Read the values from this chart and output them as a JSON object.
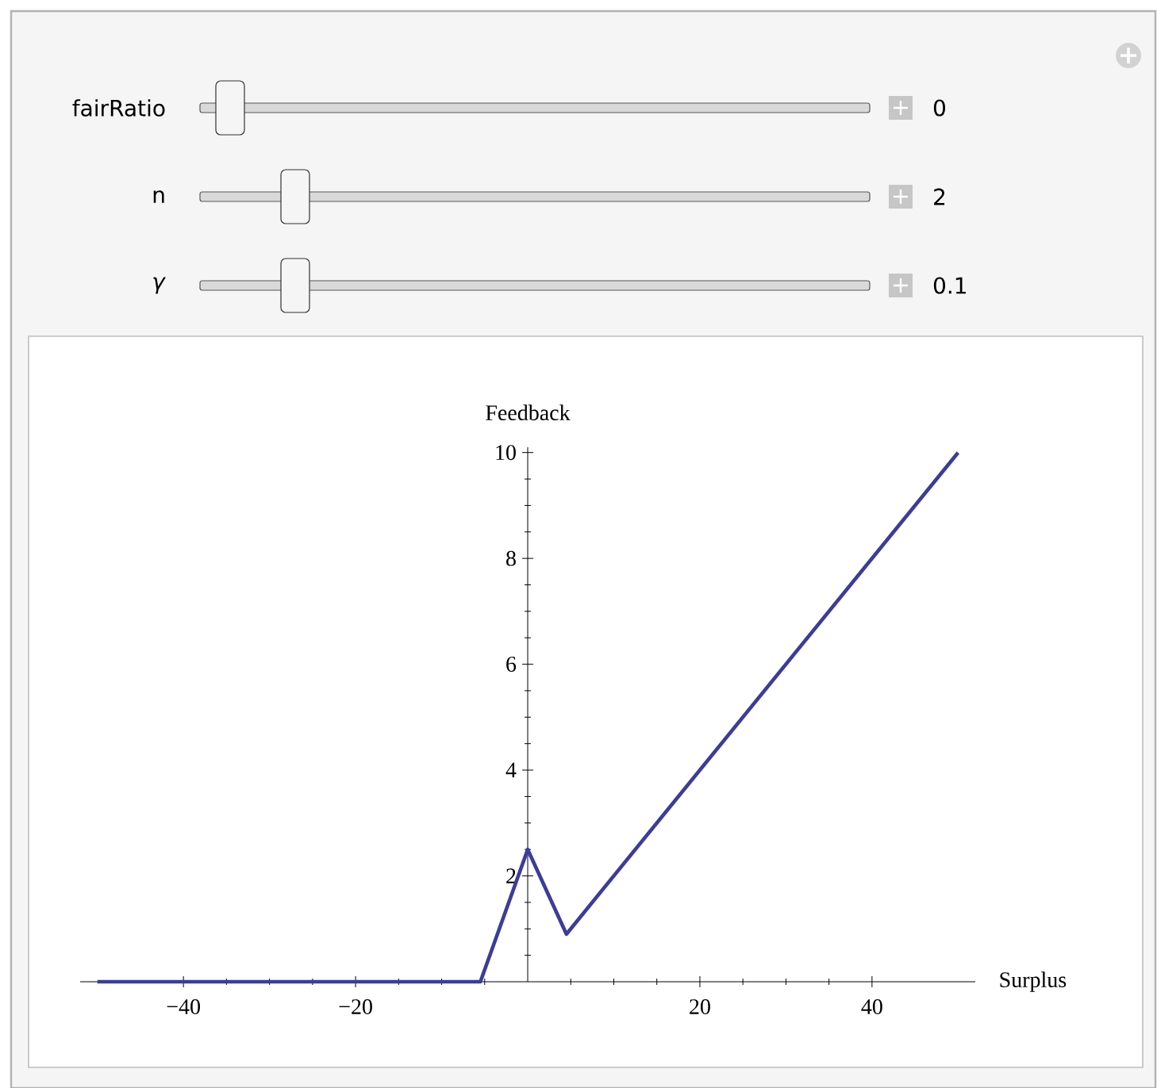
{
  "chart_data": {
    "type": "line",
    "xlabel": "Surplus",
    "ylabel": "Feedback",
    "x": [
      -50,
      -5.5,
      0,
      4.5,
      50
    ],
    "series": [
      {
        "color": "#3c3c9a",
        "values": [
          0,
          0,
          2.5,
          0.9,
          10
        ]
      }
    ],
    "xlim": [
      -52,
      52
    ],
    "ylim": [
      0,
      10.1
    ],
    "xticks": [
      {
        "value": -40,
        "label": "−40"
      },
      {
        "value": -20,
        "label": "−20"
      },
      {
        "value": 0,
        "label": null
      },
      {
        "value": 20,
        "label": "20"
      },
      {
        "value": 40,
        "label": "40"
      }
    ],
    "yticks": [
      {
        "value": 0,
        "label": null
      },
      {
        "value": 2,
        "label": "2"
      },
      {
        "value": 4,
        "label": "4"
      },
      {
        "value": 6,
        "label": "6"
      },
      {
        "value": 8,
        "label": "8"
      },
      {
        "value": 10,
        "label": "10"
      }
    ],
    "grid": false,
    "marker": "none",
    "line_style": "solid",
    "annotations": [
      "fairRatio",
      "0",
      "n",
      "2",
      "*γ*",
      "0.1"
    ]
  }
}
